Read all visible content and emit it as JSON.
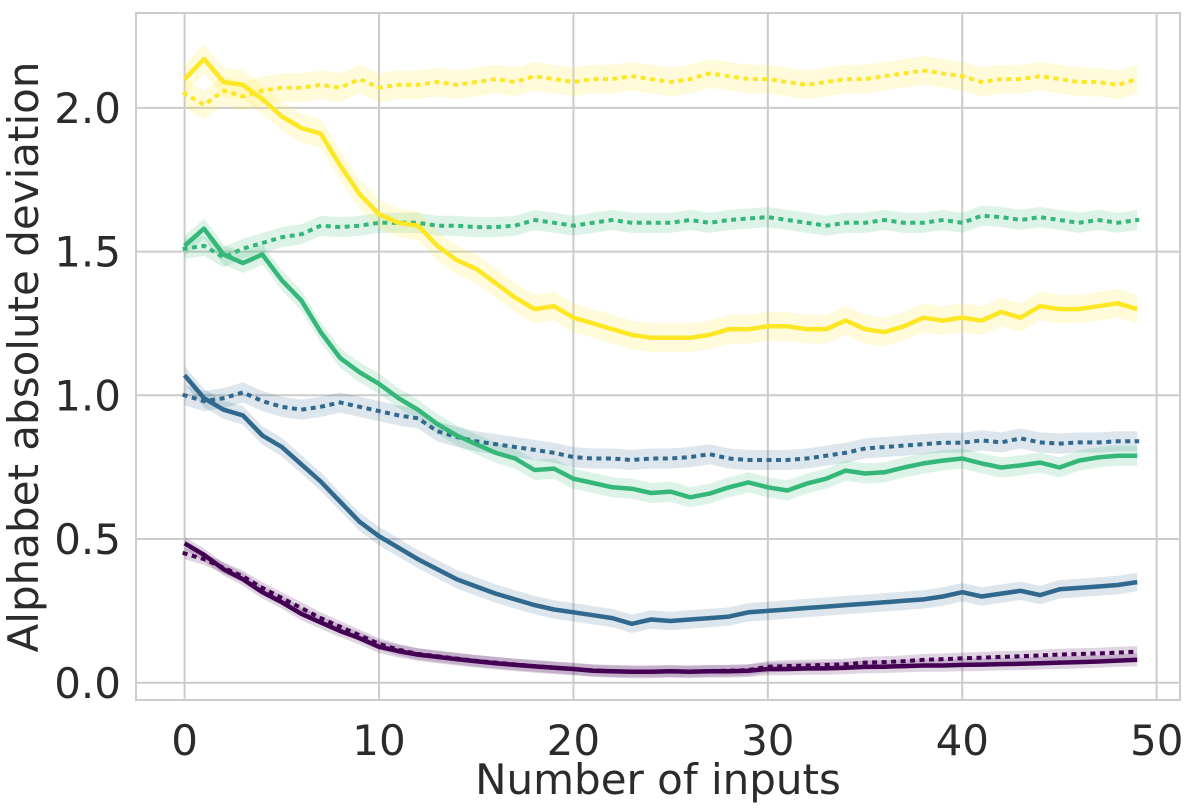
{
  "chart_data": {
    "type": "line",
    "title": "",
    "xlabel": "Number of inputs",
    "ylabel": "Alphabet absolute deviation",
    "x_ticks": [
      0,
      10,
      20,
      30,
      40,
      50
    ],
    "x_tick_labels": [
      "0",
      "10",
      "20",
      "30",
      "40",
      "50"
    ],
    "y_ticks": [
      0.0,
      0.5,
      1.0,
      1.5,
      2.0
    ],
    "y_tick_labels": [
      "0.0",
      "0.5",
      "1.0",
      "1.5",
      "2.0"
    ],
    "xlim": [
      -2.5,
      51.2
    ],
    "ylim": [
      -0.06,
      2.33
    ],
    "grid": true,
    "legend": null,
    "colors": {
      "purple": "#440154",
      "blue": "#31688e",
      "green": "#35b779",
      "yellow": "#fde725",
      "text": "#2b2b2b",
      "grid": "#cccccc"
    },
    "x": [
      0,
      1,
      2,
      3,
      4,
      5,
      6,
      7,
      8,
      9,
      10,
      11,
      12,
      13,
      14,
      15,
      16,
      17,
      18,
      19,
      20,
      21,
      22,
      23,
      24,
      25,
      26,
      27,
      28,
      29,
      30,
      31,
      32,
      33,
      34,
      35,
      36,
      37,
      38,
      39,
      40,
      41,
      42,
      43,
      44,
      45,
      46,
      47,
      48,
      49
    ],
    "series": [
      {
        "name": "purple-solid",
        "color": "#440154",
        "linestyle": "solid",
        "band_halfwidth": 0.022,
        "values": [
          0.485,
          0.445,
          0.395,
          0.36,
          0.315,
          0.28,
          0.24,
          0.21,
          0.18,
          0.155,
          0.125,
          0.11,
          0.098,
          0.09,
          0.082,
          0.075,
          0.068,
          0.062,
          0.057,
          0.052,
          0.048,
          0.042,
          0.04,
          0.038,
          0.038,
          0.04,
          0.038,
          0.04,
          0.04,
          0.042,
          0.048,
          0.048,
          0.05,
          0.05,
          0.052,
          0.055,
          0.056,
          0.058,
          0.06,
          0.06,
          0.062,
          0.063,
          0.065,
          0.066,
          0.068,
          0.07,
          0.072,
          0.074,
          0.077,
          0.08
        ]
      },
      {
        "name": "purple-dotted",
        "color": "#440154",
        "linestyle": "dotted",
        "band_halfwidth": 0.02,
        "values": [
          0.45,
          0.43,
          0.4,
          0.37,
          0.33,
          0.295,
          0.26,
          0.225,
          0.195,
          0.165,
          0.135,
          0.115,
          0.1,
          0.092,
          0.084,
          0.076,
          0.07,
          0.064,
          0.058,
          0.053,
          0.048,
          0.043,
          0.04,
          0.039,
          0.039,
          0.04,
          0.039,
          0.041,
          0.042,
          0.044,
          0.056,
          0.058,
          0.06,
          0.062,
          0.064,
          0.07,
          0.072,
          0.075,
          0.08,
          0.082,
          0.085,
          0.087,
          0.09,
          0.092,
          0.095,
          0.098,
          0.1,
          0.102,
          0.105,
          0.108
        ]
      },
      {
        "name": "blue-solid",
        "color": "#31688e",
        "linestyle": "solid",
        "band_halfwidth": 0.032,
        "values": [
          1.07,
          0.99,
          0.95,
          0.93,
          0.86,
          0.82,
          0.76,
          0.7,
          0.63,
          0.56,
          0.51,
          0.47,
          0.43,
          0.395,
          0.36,
          0.335,
          0.31,
          0.29,
          0.27,
          0.255,
          0.245,
          0.235,
          0.225,
          0.205,
          0.22,
          0.215,
          0.22,
          0.225,
          0.23,
          0.245,
          0.25,
          0.255,
          0.26,
          0.265,
          0.27,
          0.275,
          0.28,
          0.285,
          0.29,
          0.3,
          0.315,
          0.3,
          0.31,
          0.32,
          0.305,
          0.325,
          0.33,
          0.335,
          0.34,
          0.35
        ]
      },
      {
        "name": "blue-dotted",
        "color": "#31688e",
        "linestyle": "dotted",
        "band_halfwidth": 0.035,
        "values": [
          1.0,
          0.98,
          0.99,
          1.01,
          0.98,
          0.96,
          0.95,
          0.96,
          0.975,
          0.96,
          0.945,
          0.93,
          0.92,
          0.875,
          0.855,
          0.84,
          0.83,
          0.82,
          0.81,
          0.8,
          0.785,
          0.78,
          0.78,
          0.775,
          0.78,
          0.78,
          0.785,
          0.795,
          0.78,
          0.775,
          0.775,
          0.775,
          0.78,
          0.79,
          0.8,
          0.815,
          0.82,
          0.825,
          0.83,
          0.835,
          0.835,
          0.843,
          0.836,
          0.85,
          0.836,
          0.832,
          0.836,
          0.836,
          0.84,
          0.84
        ]
      },
      {
        "name": "green-solid",
        "color": "#35b779",
        "linestyle": "solid",
        "band_halfwidth": 0.035,
        "values": [
          1.52,
          1.58,
          1.49,
          1.46,
          1.49,
          1.4,
          1.33,
          1.22,
          1.13,
          1.08,
          1.04,
          0.99,
          0.95,
          0.9,
          0.86,
          0.83,
          0.8,
          0.78,
          0.74,
          0.745,
          0.71,
          0.695,
          0.68,
          0.675,
          0.66,
          0.665,
          0.645,
          0.658,
          0.68,
          0.697,
          0.68,
          0.669,
          0.693,
          0.71,
          0.738,
          0.728,
          0.732,
          0.749,
          0.763,
          0.773,
          0.78,
          0.763,
          0.749,
          0.756,
          0.766,
          0.749,
          0.773,
          0.784,
          0.79,
          0.79
        ]
      },
      {
        "name": "green-dotted",
        "color": "#35b779",
        "linestyle": "dotted",
        "band_halfwidth": 0.035,
        "values": [
          1.51,
          1.52,
          1.48,
          1.51,
          1.53,
          1.55,
          1.56,
          1.59,
          1.585,
          1.59,
          1.6,
          1.6,
          1.6,
          1.59,
          1.59,
          1.585,
          1.585,
          1.59,
          1.61,
          1.6,
          1.59,
          1.6,
          1.61,
          1.6,
          1.6,
          1.6,
          1.61,
          1.6,
          1.61,
          1.615,
          1.62,
          1.61,
          1.6,
          1.59,
          1.6,
          1.6,
          1.61,
          1.6,
          1.6,
          1.61,
          1.6,
          1.625,
          1.62,
          1.61,
          1.62,
          1.61,
          1.6,
          1.61,
          1.6,
          1.61
        ]
      },
      {
        "name": "yellow-solid",
        "color": "#fde725",
        "linestyle": "solid",
        "band_halfwidth": 0.05,
        "values": [
          2.1,
          2.17,
          2.09,
          2.08,
          2.03,
          1.97,
          1.93,
          1.91,
          1.8,
          1.7,
          1.63,
          1.6,
          1.59,
          1.52,
          1.47,
          1.44,
          1.39,
          1.34,
          1.3,
          1.31,
          1.27,
          1.25,
          1.23,
          1.21,
          1.2,
          1.2,
          1.2,
          1.21,
          1.23,
          1.23,
          1.24,
          1.24,
          1.23,
          1.23,
          1.26,
          1.23,
          1.22,
          1.24,
          1.27,
          1.26,
          1.27,
          1.26,
          1.29,
          1.27,
          1.31,
          1.3,
          1.3,
          1.31,
          1.32,
          1.3
        ]
      },
      {
        "name": "yellow-dotted",
        "color": "#fde725",
        "linestyle": "dotted",
        "band_halfwidth": 0.05,
        "values": [
          2.05,
          2.01,
          2.06,
          2.04,
          2.06,
          2.07,
          2.07,
          2.08,
          2.07,
          2.1,
          2.07,
          2.08,
          2.08,
          2.09,
          2.08,
          2.09,
          2.1,
          2.09,
          2.11,
          2.1,
          2.09,
          2.1,
          2.1,
          2.11,
          2.1,
          2.09,
          2.1,
          2.12,
          2.11,
          2.1,
          2.1,
          2.09,
          2.08,
          2.09,
          2.1,
          2.1,
          2.11,
          2.12,
          2.13,
          2.12,
          2.11,
          2.09,
          2.1,
          2.1,
          2.11,
          2.1,
          2.09,
          2.09,
          2.08,
          2.1
        ]
      }
    ]
  }
}
